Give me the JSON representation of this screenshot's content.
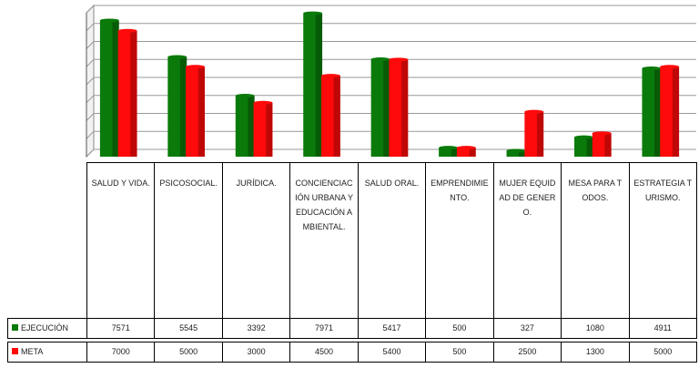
{
  "chart_data": {
    "type": "bar",
    "categories": [
      "SALUD Y VIDA.",
      "PSICOSOCIAL.",
      "JURÍDICA.",
      "CONCIENCIACIÓN URBANA Y EDUCACIÓN AMBIENTAL.",
      "SALUD ORAL.",
      "EMPRENDIMIENTO.",
      "MUJER EQUIDAD DE GENERO.",
      "MESA PARA TODOS.",
      "ESTRATEGIA TURISMO."
    ],
    "series": [
      {
        "name": "EJECUCIÓN",
        "color": "#0a7a0a",
        "values": [
          7571,
          5545,
          3392,
          7971,
          5417,
          500,
          327,
          1080,
          4911
        ]
      },
      {
        "name": "META",
        "color": "#ff0a0a",
        "values": [
          7000,
          5000,
          3000,
          4500,
          5400,
          500,
          2500,
          1300,
          5000
        ]
      }
    ],
    "ylim": [
      0,
      8000
    ],
    "yticks": [
      0,
      1000,
      2000,
      3000,
      4000,
      5000,
      6000,
      7000,
      8000
    ],
    "grid": true
  }
}
